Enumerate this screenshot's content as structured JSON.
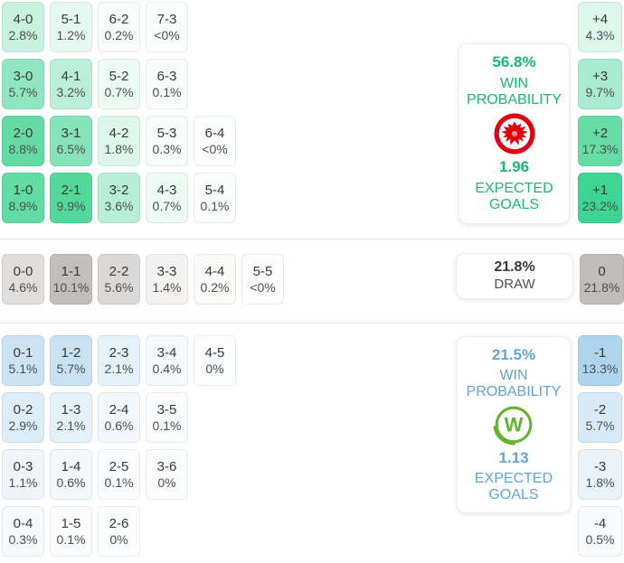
{
  "home": {
    "team": "Eintracht Frankfurt",
    "accent": "#1db874",
    "logo_red": "#e1000f",
    "panel": {
      "win_probability": "56.8%",
      "win_probability_label": "WIN PROBABILITY",
      "expected_goals": "1.96",
      "expected_goals_label": "EXPECTED GOALS"
    },
    "rows": [
      [
        {
          "score": "4-0",
          "pct": "2.8%",
          "bg": "#c8f2e0"
        },
        {
          "score": "5-1",
          "pct": "1.2%",
          "bg": "#e7faf2"
        },
        {
          "score": "6-2",
          "pct": "0.2%",
          "bg": "#f8fdfb"
        },
        {
          "score": "7-3",
          "pct": "<0%",
          "bg": "#fcfefd"
        }
      ],
      [
        {
          "score": "3-0",
          "pct": "5.7%",
          "bg": "#90e6c0"
        },
        {
          "score": "4-1",
          "pct": "3.2%",
          "bg": "#bbefd9"
        },
        {
          "score": "5-2",
          "pct": "0.7%",
          "bg": "#ecfbf4"
        },
        {
          "score": "6-3",
          "pct": "0.1%",
          "bg": "#fafdfc"
        }
      ],
      [
        {
          "score": "2-0",
          "pct": "8.8%",
          "bg": "#64dba5"
        },
        {
          "score": "3-1",
          "pct": "6.5%",
          "bg": "#85e3b9"
        },
        {
          "score": "4-2",
          "pct": "1.8%",
          "bg": "#ddf7eb"
        },
        {
          "score": "5-3",
          "pct": "0.3%",
          "bg": "#f7fdfa"
        },
        {
          "score": "6-4",
          "pct": "<0%",
          "bg": "#fcfefd"
        }
      ],
      [
        {
          "score": "1-0",
          "pct": "8.9%",
          "bg": "#63dba4"
        },
        {
          "score": "2-1",
          "pct": "9.9%",
          "bg": "#52d89b"
        },
        {
          "score": "3-2",
          "pct": "3.6%",
          "bg": "#b7eed7"
        },
        {
          "score": "4-3",
          "pct": "0.7%",
          "bg": "#ecfbf4"
        },
        {
          "score": "5-4",
          "pct": "0.1%",
          "bg": "#fafdfc"
        }
      ]
    ],
    "margins": [
      {
        "label": "+4",
        "pct": "4.3%",
        "bg": "#dcf7ec"
      },
      {
        "label": "+3",
        "pct": "9.7%",
        "bg": "#a9ebd1"
      },
      {
        "label": "+2",
        "pct": "17.3%",
        "bg": "#66dca7"
      },
      {
        "label": "+1",
        "pct": "23.2%",
        "bg": "#3ed494"
      }
    ]
  },
  "draw": {
    "panel": {
      "probability": "21.8%",
      "label": "DRAW"
    },
    "rows": [
      [
        {
          "score": "0-0",
          "pct": "4.6%",
          "bg": "#e0dedd"
        },
        {
          "score": "1-1",
          "pct": "10.1%",
          "bg": "#c2bebc"
        },
        {
          "score": "2-2",
          "pct": "5.6%",
          "bg": "#dbd9d8"
        },
        {
          "score": "3-3",
          "pct": "1.4%",
          "bg": "#f3f2f1"
        },
        {
          "score": "4-4",
          "pct": "0.2%",
          "bg": "#fafaf9"
        },
        {
          "score": "5-5",
          "pct": "<0%",
          "bg": "#fdfdfd"
        }
      ]
    ],
    "margins": [
      {
        "label": "0",
        "pct": "21.8%",
        "bg": "#c1bdba"
      }
    ]
  },
  "away": {
    "team": "VfL Wolfsburg",
    "accent": "#60a6d6",
    "logo_green": "#65b32e",
    "panel": {
      "win_probability": "21.5%",
      "win_probability_label": "WIN PROBABILITY",
      "expected_goals": "1.13",
      "expected_goals_label": "EXPECTED GOALS"
    },
    "rows": [
      [
        {
          "score": "0-1",
          "pct": "5.1%",
          "bg": "#cbe3f3"
        },
        {
          "score": "1-2",
          "pct": "5.7%",
          "bg": "#c8e2f2"
        },
        {
          "score": "2-3",
          "pct": "2.1%",
          "bg": "#e4f1f9"
        },
        {
          "score": "3-4",
          "pct": "0.4%",
          "bg": "#f5fafd"
        },
        {
          "score": "4-5",
          "pct": "0%",
          "bg": "#fbfdfe"
        }
      ],
      [
        {
          "score": "0-2",
          "pct": "2.9%",
          "bg": "#ddedf7"
        },
        {
          "score": "1-3",
          "pct": "2.1%",
          "bg": "#e4f1f9"
        },
        {
          "score": "2-4",
          "pct": "0.6%",
          "bg": "#f2f8fc"
        },
        {
          "score": "3-5",
          "pct": "0.1%",
          "bg": "#fafcfe"
        }
      ],
      [
        {
          "score": "0-3",
          "pct": "1.1%",
          "bg": "#eef5fb"
        },
        {
          "score": "1-4",
          "pct": "0.6%",
          "bg": "#f2f8fc"
        },
        {
          "score": "2-5",
          "pct": "0.1%",
          "bg": "#fafcfe"
        },
        {
          "score": "3-6",
          "pct": "0%",
          "bg": "#fcfdfe"
        }
      ],
      [
        {
          "score": "0-4",
          "pct": "0.3%",
          "bg": "#f7fafd"
        },
        {
          "score": "1-5",
          "pct": "0.1%",
          "bg": "#fafcfe"
        },
        {
          "score": "2-6",
          "pct": "0%",
          "bg": "#fcfdfe"
        }
      ]
    ],
    "margins": [
      {
        "label": "-1",
        "pct": "13.3%",
        "bg": "#aed4ee"
      },
      {
        "label": "-2",
        "pct": "5.7%",
        "bg": "#d8eaf6"
      },
      {
        "label": "-3",
        "pct": "1.8%",
        "bg": "#ebf3fa"
      },
      {
        "label": "-4",
        "pct": "0.5%",
        "bg": "#f8fbfd"
      }
    ]
  }
}
